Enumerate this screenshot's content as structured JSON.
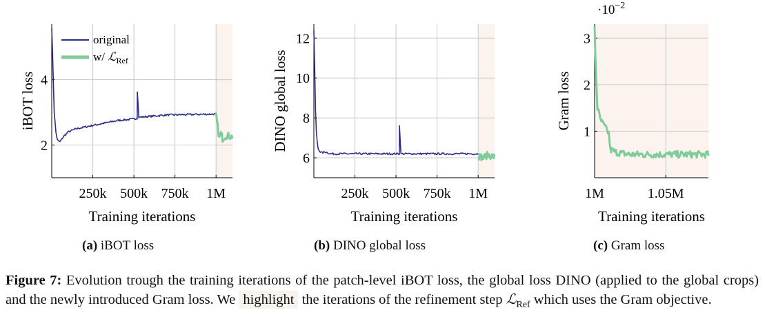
{
  "colors": {
    "original": "#2b2d87",
    "refine": "#7fcc9a",
    "highlight": "#fbf4ee",
    "grid": "#c8c8c8"
  },
  "chart_data": [
    {
      "type": "line",
      "id": "ibot",
      "title": "",
      "xlabel": "Training iterations",
      "ylabel": "iBOT loss",
      "xlim": [
        0,
        1100000
      ],
      "ylim": [
        1,
        5.7
      ],
      "xticks": [
        250000,
        500000,
        750000,
        1000000
      ],
      "xtick_labels": [
        "250k",
        "500k",
        "750k",
        "1M"
      ],
      "yticks": [
        2,
        4
      ],
      "ytick_labels": [
        "2",
        "4"
      ],
      "highlight_range": [
        1000000,
        1100000
      ],
      "legend": {
        "placement": "top-left",
        "entries": [
          "original",
          "w/ ℒRef"
        ]
      },
      "series": [
        {
          "name": "original",
          "x": [
            0,
            8000,
            15000,
            25000,
            35000,
            50000,
            70000,
            100000,
            150000,
            200000,
            300000,
            400000,
            500000,
            520000,
            521000,
            530000,
            600000,
            700000,
            800000,
            900000,
            1000000
          ],
          "y": [
            5.6,
            4.3,
            3.0,
            2.4,
            2.15,
            2.1,
            2.25,
            2.4,
            2.5,
            2.55,
            2.65,
            2.75,
            2.8,
            2.82,
            3.65,
            2.85,
            2.88,
            2.92,
            2.93,
            2.94,
            2.95
          ]
        },
        {
          "name": "w/ ℒRef",
          "x": [
            1000000,
            1010000,
            1020000,
            1030000,
            1040000,
            1060000,
            1100000
          ],
          "y": [
            2.9,
            2.55,
            2.2,
            2.35,
            2.2,
            2.3,
            2.25
          ]
        }
      ],
      "legend_labels": {
        "original": "original",
        "refine_prefix": "w/ ",
        "refine_symbol": "ℒ",
        "refine_sub": "Ref"
      }
    },
    {
      "type": "line",
      "id": "dino",
      "title": "",
      "xlabel": "Training iterations",
      "ylabel": "DINO global loss",
      "xlim": [
        0,
        1100000
      ],
      "ylim": [
        5,
        12.7
      ],
      "xticks": [
        250000,
        500000,
        750000,
        1000000
      ],
      "xtick_labels": [
        "250k",
        "500k",
        "750k",
        "1M"
      ],
      "yticks": [
        6,
        8,
        10,
        12
      ],
      "ytick_labels": [
        "6",
        "8",
        "10",
        "12"
      ],
      "highlight_range": [
        1000000,
        1100000
      ],
      "series": [
        {
          "name": "original",
          "x": [
            0,
            5000,
            10000,
            15000,
            20000,
            25000,
            30000,
            40000,
            50000,
            70000,
            100000,
            200000,
            400000,
            520000,
            521000,
            530000,
            700000,
            1000000
          ],
          "y": [
            12.4,
            10.5,
            8.4,
            7.3,
            6.8,
            6.5,
            6.4,
            6.3,
            6.25,
            6.3,
            6.2,
            6.2,
            6.2,
            6.2,
            7.6,
            6.2,
            6.2,
            6.2
          ]
        },
        {
          "name": "w/ ℒRef",
          "x": [
            1000000,
            1030000,
            1060000,
            1100000
          ],
          "y": [
            6.1,
            6.0,
            6.15,
            6.05
          ]
        }
      ]
    },
    {
      "type": "line",
      "id": "gram",
      "title": "",
      "xlabel": "Training iterations",
      "ylabel": "Gram loss",
      "y_multiplier": "·10",
      "y_multiplier_exp": "−2",
      "xlim": [
        1000000,
        1080000
      ],
      "ylim": [
        0,
        3.3
      ],
      "xticks": [
        1000000,
        1050000
      ],
      "xtick_labels": [
        "1M",
        "1.05M"
      ],
      "yticks": [
        1,
        2,
        3
      ],
      "ytick_labels": [
        "1",
        "2",
        "3"
      ],
      "highlight_range": [
        1000000,
        1080000
      ],
      "series": [
        {
          "name": "w/ ℒRef",
          "x": [
            1000000,
            1001000,
            1002000,
            1004000,
            1006000,
            1008000,
            1010000,
            1011000,
            1015000,
            1020000,
            1025000,
            1030000,
            1040000,
            1050000,
            1060000,
            1080000
          ],
          "y": [
            3.2,
            2.2,
            1.5,
            1.25,
            1.15,
            1.05,
            0.95,
            0.6,
            0.55,
            0.52,
            0.5,
            0.5,
            0.5,
            0.5,
            0.5,
            0.5
          ]
        }
      ]
    }
  ],
  "subcaptions": [
    {
      "label": "(a)",
      "text": " iBOT loss"
    },
    {
      "label": "(b)",
      "text": " DINO global loss"
    },
    {
      "label": "(c)",
      "text": " Gram loss"
    }
  ],
  "caption": {
    "label": "Figure 7:",
    "part1": " Evolution trough the training iterations of the patch-level iBOT loss, the global loss DINO (applied to the global crops) and the newly introduced Gram loss.  We ",
    "highlight_word": "highlight",
    "part2": " the iterations of the refinement step ",
    "symbol": "ℒ",
    "symbol_sub": "Ref",
    "part3": " which uses the Gram objective."
  }
}
